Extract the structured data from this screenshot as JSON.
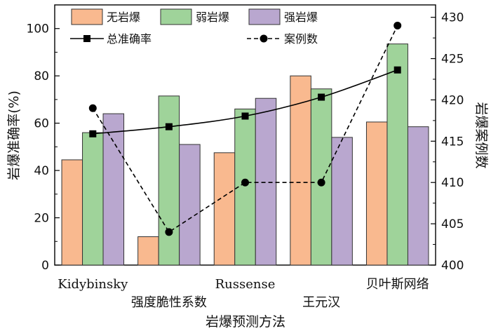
{
  "chart_data": {
    "type": "bar",
    "categories": [
      "Kidybinsky",
      "强度脆性系数",
      "Russense",
      "王元汉",
      "贝叶斯网络"
    ],
    "series": [
      {
        "name": "无岩爆",
        "values": [
          44.5,
          12,
          47.5,
          80,
          60.5
        ],
        "color": "#f9b98f"
      },
      {
        "name": "弱岩爆",
        "values": [
          56,
          71.5,
          66,
          74.5,
          93.5
        ],
        "color": "#9fd39a"
      },
      {
        "name": "强岩爆",
        "values": [
          64,
          51,
          70.5,
          54,
          58.5
        ],
        "color": "#b9a7cf"
      }
    ],
    "lines": [
      {
        "name": "总准确率",
        "axis": "left",
        "marker": "square",
        "style": "solid",
        "values": [
          55.5,
          58.5,
          63,
          71,
          82.5
        ]
      },
      {
        "name": "案例数",
        "axis": "right",
        "marker": "circle",
        "style": "dashed",
        "values": [
          419,
          404,
          410,
          410,
          429
        ]
      }
    ],
    "xlabel": "岩爆预测方法",
    "ylabel": "岩爆准确率(%)",
    "ylabel_right": "岩爆案例数",
    "ylim": [
      0,
      110
    ],
    "ylim_right": [
      400,
      431.5
    ],
    "yticks": [
      0,
      20,
      40,
      60,
      80,
      100
    ],
    "yticks_right": [
      400,
      405,
      410,
      415,
      420,
      425,
      430
    ],
    "legend_position": "top"
  }
}
